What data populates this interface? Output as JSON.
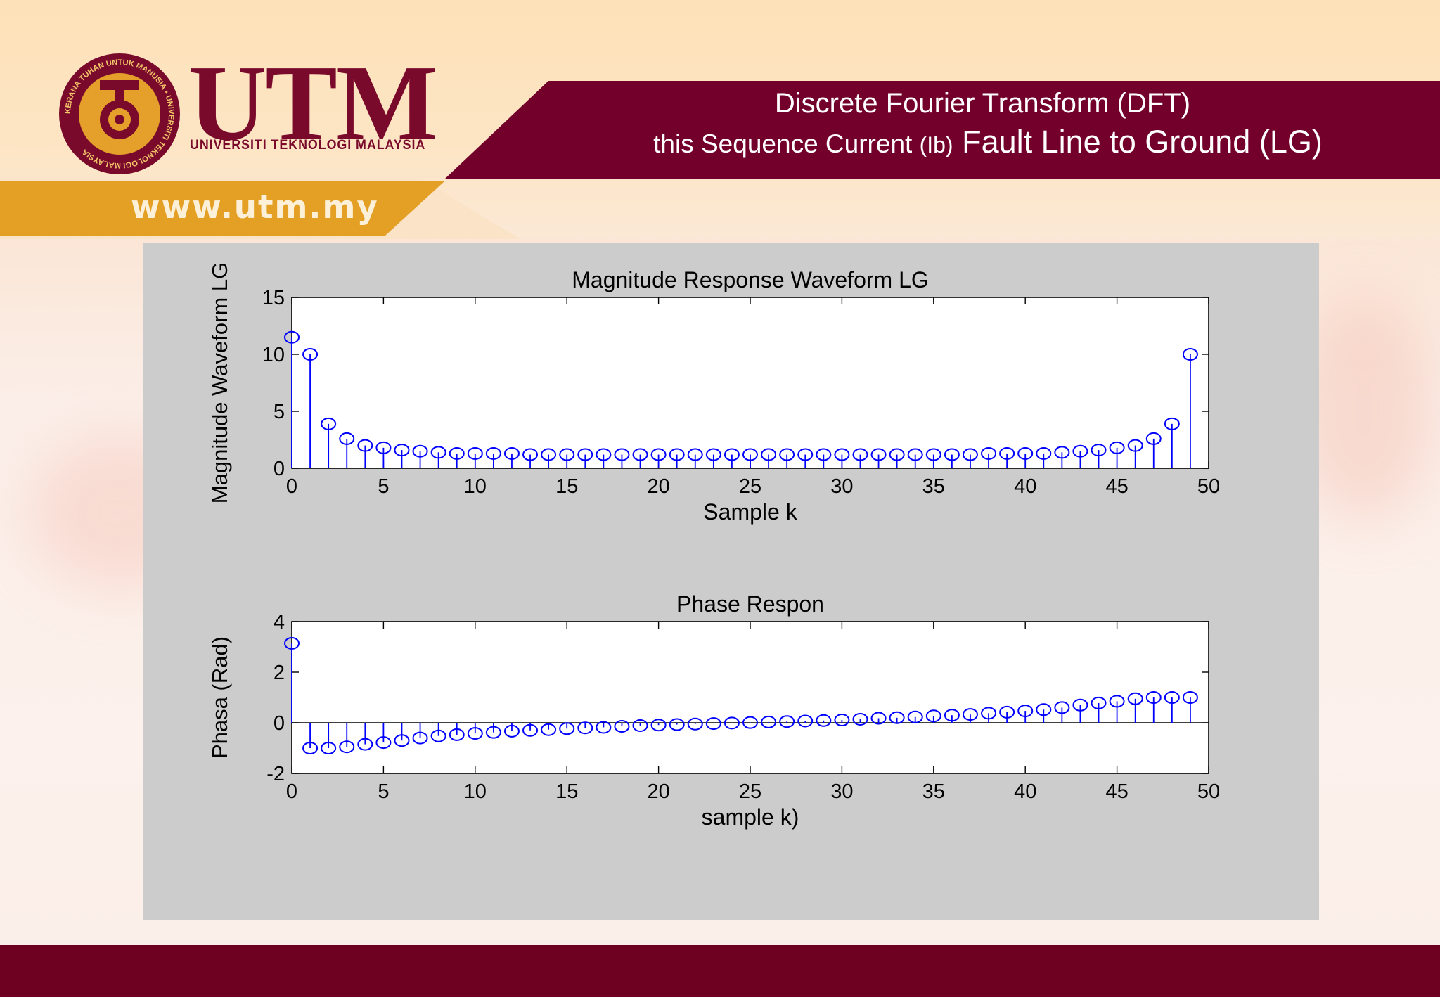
{
  "header": {
    "brand_name": "UTM",
    "brand_subtitle": "UNIVERSITI TEKNOLOGI MALAYSIA",
    "logo_ring_text": "KERANA TUHAN UNTUK MANUSIA • UNIVERSITI TEKNOLOGI MALAYSIA",
    "website": "www.utm.my",
    "title_line1": "Discrete Fourier Transform (DFT)",
    "title_line2_part1": "this Sequence Current ",
    "title_line2_part2": " (Ib)",
    "title_line2_part3": " Fault Line to Ground (LG)"
  },
  "colors": {
    "maroon": "#73002a",
    "gold": "#e3a024",
    "stem_blue": "#0000ff",
    "figure_bg": "#cccccc"
  },
  "chart_data": [
    {
      "type": "stem",
      "title": "Magnitude Response Waveform LG",
      "xlabel": "Sample k",
      "ylabel": "Magnitude Waveform LG",
      "xlim": [
        0,
        50
      ],
      "ylim": [
        0,
        15
      ],
      "xticks": [
        0,
        5,
        10,
        15,
        20,
        25,
        30,
        35,
        40,
        45,
        50
      ],
      "yticks": [
        0,
        5,
        10,
        15
      ],
      "x": [
        0,
        1,
        2,
        3,
        4,
        5,
        6,
        7,
        8,
        9,
        10,
        11,
        12,
        13,
        14,
        15,
        16,
        17,
        18,
        19,
        20,
        21,
        22,
        23,
        24,
        25,
        26,
        27,
        28,
        29,
        30,
        31,
        32,
        33,
        34,
        35,
        36,
        37,
        38,
        39,
        40,
        41,
        42,
        43,
        44,
        45,
        46,
        47,
        48,
        49
      ],
      "values": [
        11.5,
        10.0,
        3.9,
        2.6,
        2.0,
        1.8,
        1.6,
        1.5,
        1.4,
        1.3,
        1.3,
        1.3,
        1.3,
        1.2,
        1.2,
        1.2,
        1.2,
        1.2,
        1.2,
        1.2,
        1.2,
        1.2,
        1.2,
        1.2,
        1.2,
        1.2,
        1.2,
        1.2,
        1.2,
        1.2,
        1.2,
        1.2,
        1.2,
        1.2,
        1.2,
        1.2,
        1.2,
        1.2,
        1.3,
        1.3,
        1.3,
        1.3,
        1.4,
        1.5,
        1.6,
        1.8,
        2.0,
        2.6,
        3.9,
        10.0
      ]
    },
    {
      "type": "stem",
      "title": "Phase Respon",
      "xlabel": "sample k)",
      "ylabel": "Phasa (Rad)",
      "xlim": [
        0,
        50
      ],
      "ylim": [
        -2,
        4
      ],
      "xticks": [
        0,
        5,
        10,
        15,
        20,
        25,
        30,
        35,
        40,
        45,
        50
      ],
      "yticks": [
        -2,
        0,
        2,
        4
      ],
      "x": [
        0,
        1,
        2,
        3,
        4,
        5,
        6,
        7,
        8,
        9,
        10,
        11,
        12,
        13,
        14,
        15,
        16,
        17,
        18,
        19,
        20,
        21,
        22,
        23,
        24,
        25,
        26,
        27,
        28,
        29,
        30,
        31,
        32,
        33,
        34,
        35,
        36,
        37,
        38,
        39,
        40,
        41,
        42,
        43,
        44,
        45,
        46,
        47,
        48,
        49
      ],
      "values": [
        3.14,
        -1.0,
        -1.0,
        -0.95,
        -0.85,
        -0.78,
        -0.7,
        -0.6,
        -0.52,
        -0.47,
        -0.42,
        -0.38,
        -0.33,
        -0.3,
        -0.27,
        -0.23,
        -0.2,
        -0.18,
        -0.14,
        -0.11,
        -0.09,
        -0.07,
        -0.05,
        -0.03,
        -0.01,
        0.01,
        0.03,
        0.05,
        0.07,
        0.09,
        0.11,
        0.14,
        0.18,
        0.2,
        0.23,
        0.27,
        0.3,
        0.33,
        0.38,
        0.42,
        0.47,
        0.52,
        0.6,
        0.7,
        0.78,
        0.85,
        0.95,
        1.0,
        1.0,
        1.0
      ]
    }
  ]
}
